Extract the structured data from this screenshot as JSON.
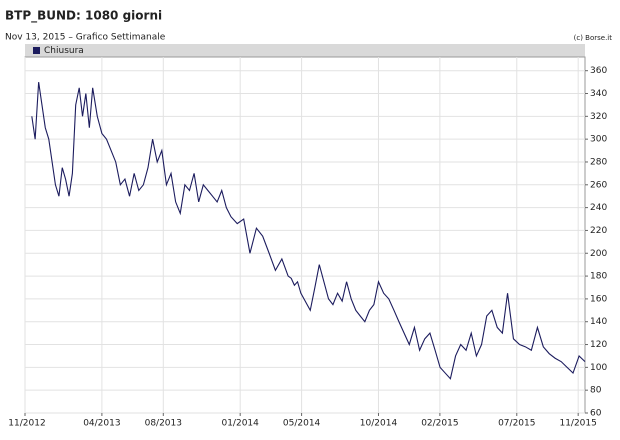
{
  "chart_data": {
    "type": "line",
    "title": "BTP_BUND: 1080 giorni",
    "subtitle": "Nov 13, 2015 – Grafico Settimanale",
    "source": "(c) Borse.it",
    "grid": true,
    "legend": "top-left",
    "xlim": [
      2012.833,
      2015.87
    ],
    "xticks": [
      {
        "value": 2012.833,
        "label": "11/2012"
      },
      {
        "value": 2013.25,
        "label": "04/2013"
      },
      {
        "value": 2013.583,
        "label": "08/2013"
      },
      {
        "value": 2014.0,
        "label": "01/2014"
      },
      {
        "value": 2014.333,
        "label": "05/2014"
      },
      {
        "value": 2014.75,
        "label": "10/2014"
      },
      {
        "value": 2015.083,
        "label": "02/2015"
      },
      {
        "value": 2015.5,
        "label": "07/2015"
      },
      {
        "value": 2015.833,
        "label": "11/2015"
      }
    ],
    "ylim": [
      60,
      372
    ],
    "yticks": [
      60,
      80,
      100,
      120,
      140,
      160,
      180,
      200,
      220,
      240,
      260,
      280,
      300,
      320,
      340,
      360
    ],
    "x": [
      2012.87,
      2012.888,
      2012.907,
      2012.925,
      2012.943,
      2012.962,
      2012.98,
      2012.998,
      2013.017,
      2013.035,
      2013.053,
      2013.072,
      2013.09,
      2013.108,
      2013.127,
      2013.145,
      2013.163,
      2013.182,
      2013.2,
      2013.225,
      2013.25,
      2013.275,
      2013.3,
      2013.325,
      2013.35,
      2013.375,
      2013.4,
      2013.425,
      2013.45,
      2013.475,
      2013.5,
      2013.525,
      2013.55,
      2013.575,
      2013.6,
      2013.625,
      2013.65,
      2013.675,
      2013.7,
      2013.725,
      2013.75,
      2013.775,
      2013.8,
      2013.825,
      2013.85,
      2013.875,
      2013.9,
      2013.925,
      2013.95,
      2013.984,
      2014.019,
      2014.053,
      2014.088,
      2014.122,
      2014.157,
      2014.191,
      2014.226,
      2014.26,
      2014.277,
      2014.294,
      2014.311,
      2014.329,
      2014.346,
      2014.363,
      2014.38,
      2014.405,
      2014.429,
      2014.454,
      2014.479,
      2014.503,
      2014.528,
      2014.553,
      2014.577,
      2014.602,
      2014.627,
      2014.651,
      2014.676,
      2014.701,
      2014.725,
      2014.75,
      2014.778,
      2014.806,
      2014.834,
      2014.861,
      2014.889,
      2014.917,
      2014.945,
      2014.973,
      2015.001,
      2015.029,
      2015.057,
      2015.084,
      2015.112,
      2015.14,
      2015.168,
      2015.196,
      2015.225,
      2015.253,
      2015.281,
      2015.309,
      2015.337,
      2015.365,
      2015.394,
      2015.422,
      2015.45,
      2015.482,
      2015.515,
      2015.547,
      2015.579,
      2015.612,
      2015.644,
      2015.676,
      2015.708,
      2015.741,
      2015.773,
      2015.805,
      2015.838,
      2015.87
    ],
    "series": [
      {
        "name": "Chiusura",
        "color": "#1c1c5e",
        "values": [
          320,
          300,
          350,
          330,
          310,
          300,
          280,
          260,
          250,
          275,
          265,
          250,
          270,
          330,
          345,
          320,
          340,
          310,
          345,
          320,
          305,
          300,
          290,
          280,
          260,
          265,
          250,
          270,
          255,
          260,
          275,
          300,
          280,
          290,
          260,
          270,
          245,
          235,
          260,
          255,
          270,
          245,
          260,
          255,
          250,
          245,
          255,
          240,
          232,
          226,
          230,
          200,
          222,
          215,
          200,
          185,
          195,
          180,
          178,
          172,
          175,
          165,
          160,
          155,
          150,
          170,
          190,
          175,
          160,
          155,
          165,
          158,
          175,
          160,
          150,
          145,
          140,
          150,
          155,
          175,
          165,
          160,
          150,
          140,
          130,
          120,
          135,
          115,
          125,
          130,
          115,
          100,
          95,
          90,
          110,
          120,
          115,
          130,
          110,
          120,
          145,
          150,
          135,
          130,
          165,
          125,
          120,
          118,
          115,
          135,
          118,
          112,
          108,
          105,
          100,
          95,
          110,
          105
        ]
      }
    ]
  }
}
